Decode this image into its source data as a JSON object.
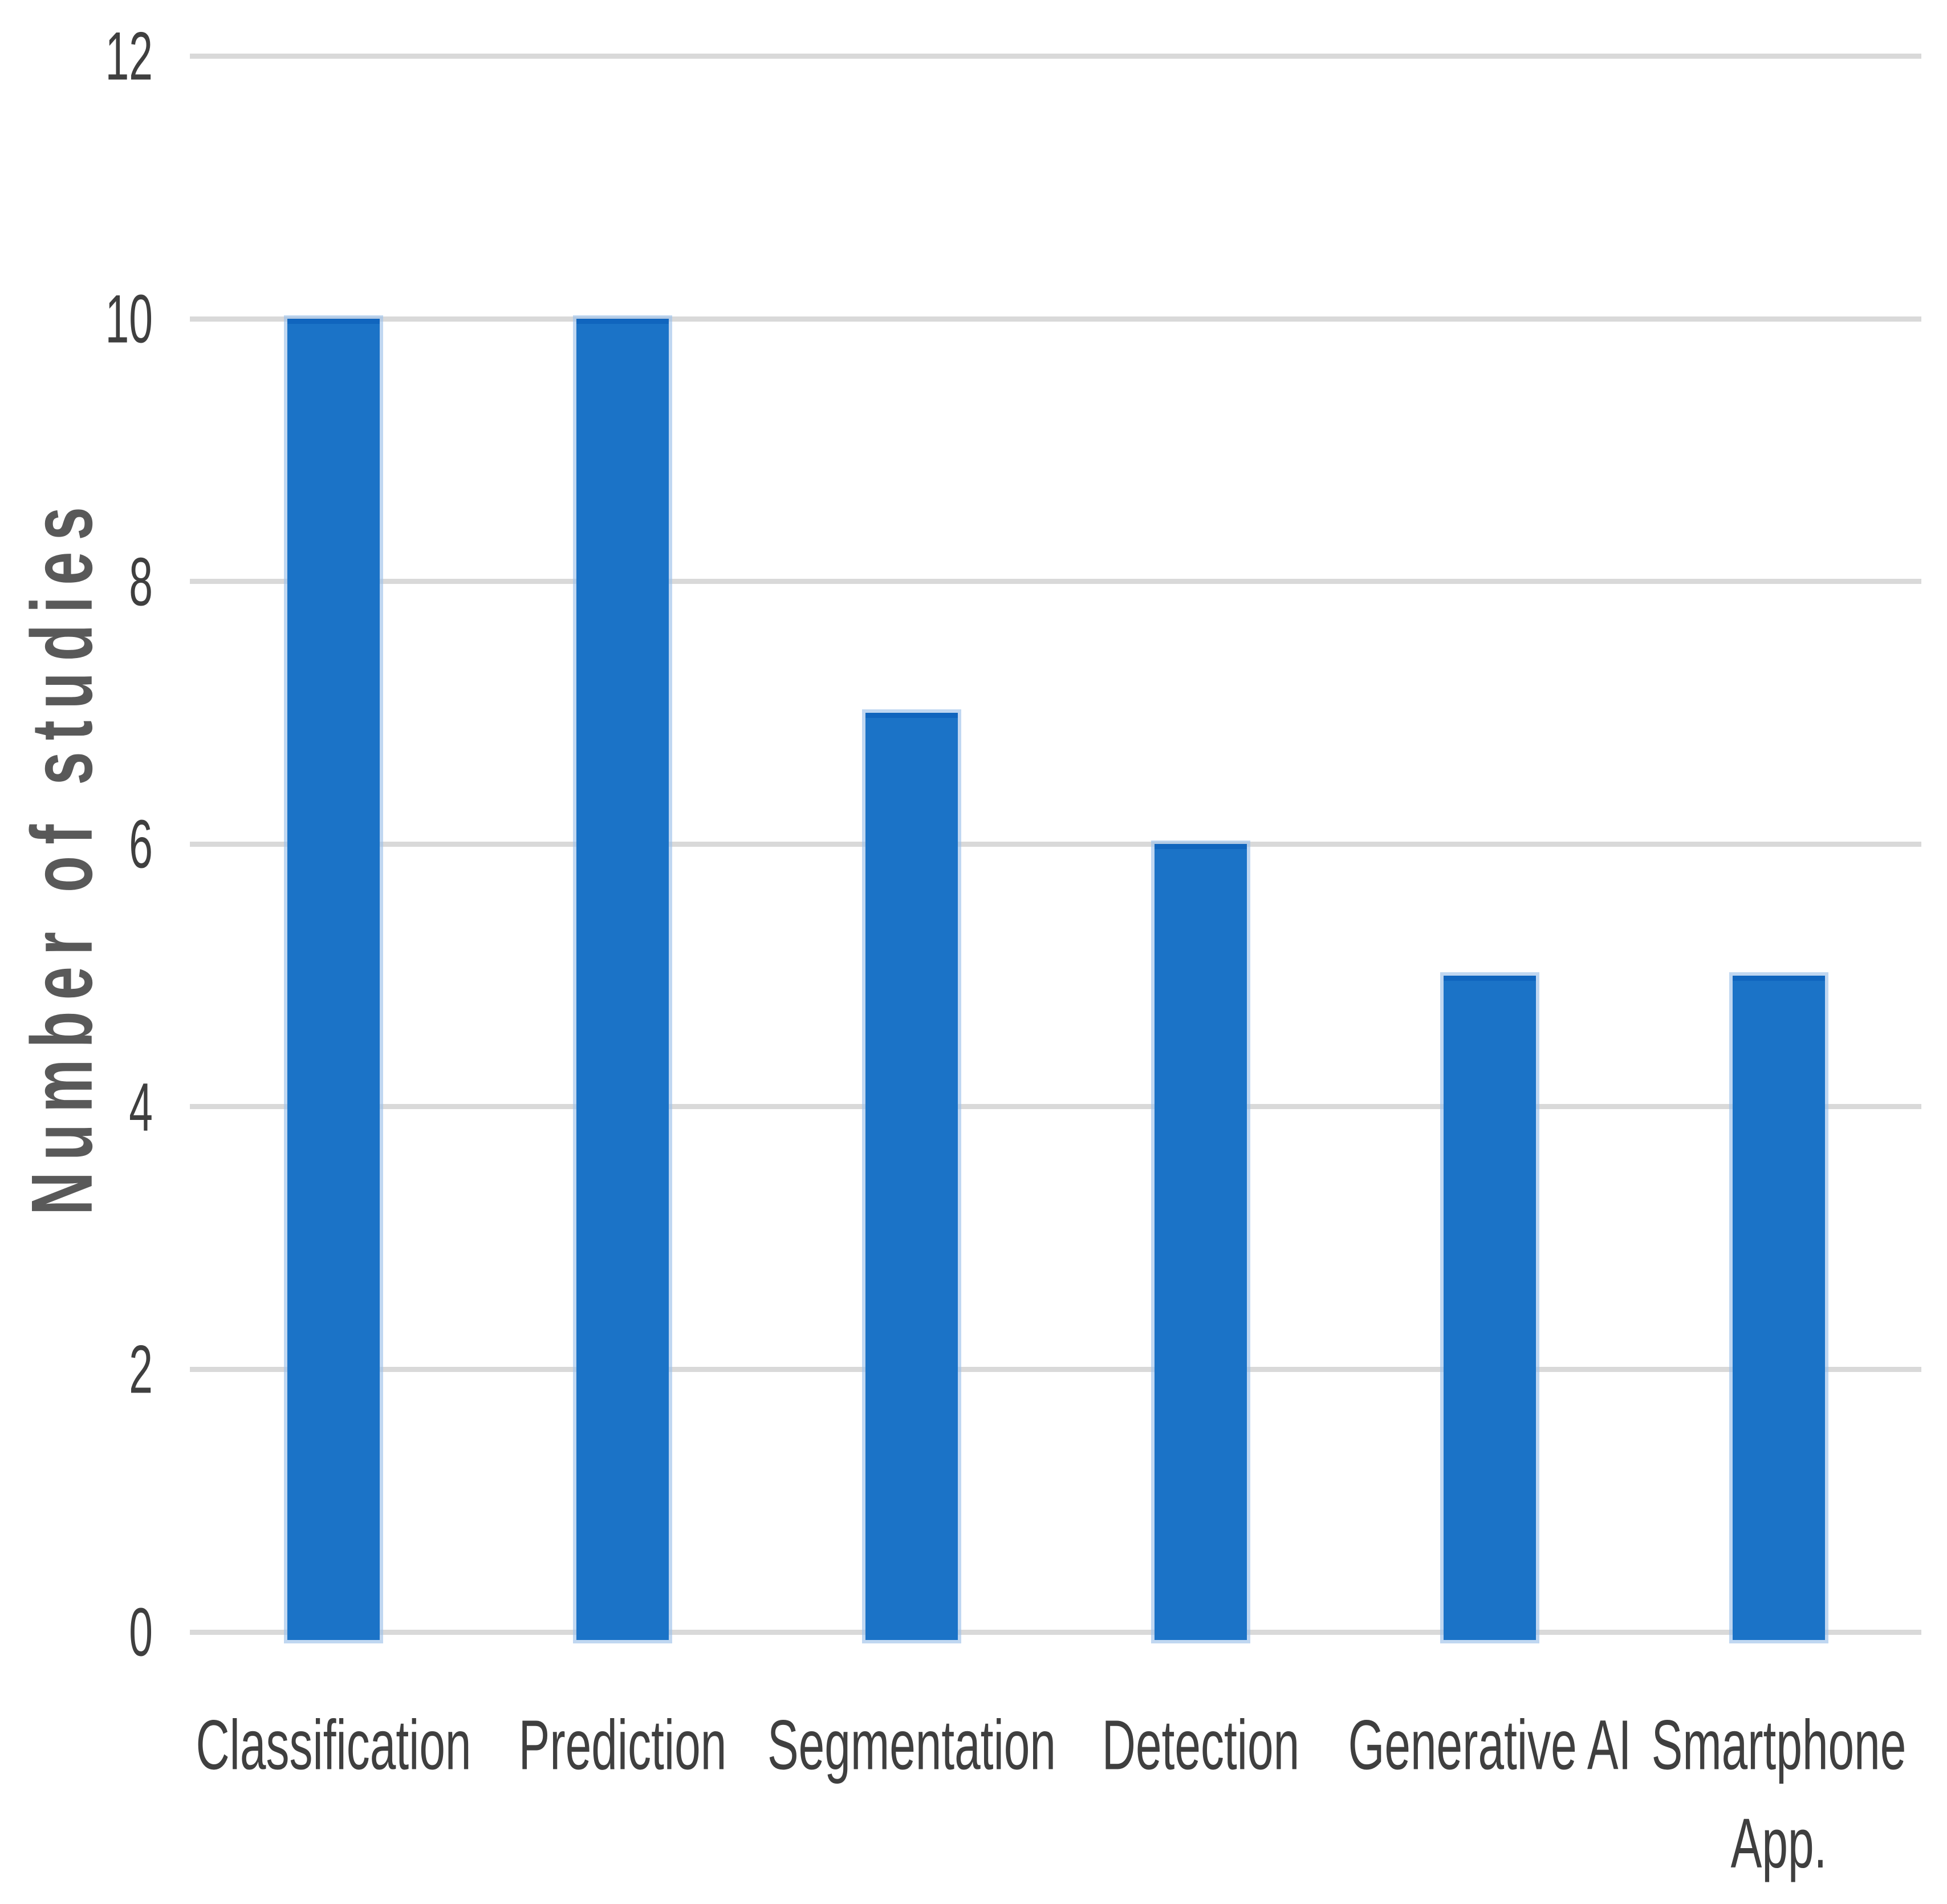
{
  "chart_data": {
    "type": "bar",
    "title": "",
    "categories": [
      "Classification",
      "Prediction",
      "Segmentation",
      "Detection",
      "Generative AI",
      "Smartphone App."
    ],
    "category_lines": [
      [
        "Classification"
      ],
      [
        "Prediction"
      ],
      [
        "Segmentation"
      ],
      [
        "Detection"
      ],
      [
        "Generative AI"
      ],
      [
        "Smartphone",
        "App."
      ]
    ],
    "values": [
      10,
      10,
      7,
      6,
      5,
      5
    ],
    "xlabel": "",
    "ylabel": "Number of studies",
    "yticks": [
      0,
      2,
      4,
      6,
      8,
      10,
      12
    ],
    "ylim": [
      0,
      12
    ],
    "grid": "horizontal",
    "legend": "none",
    "colors": {
      "bar": "#1b73c7",
      "bar_edge": "#9ec2ea",
      "gridline": "#d9d9d9",
      "tick_text": "#3f3f3f",
      "axis_title_text": "#595959",
      "background": "#ffffff"
    }
  }
}
